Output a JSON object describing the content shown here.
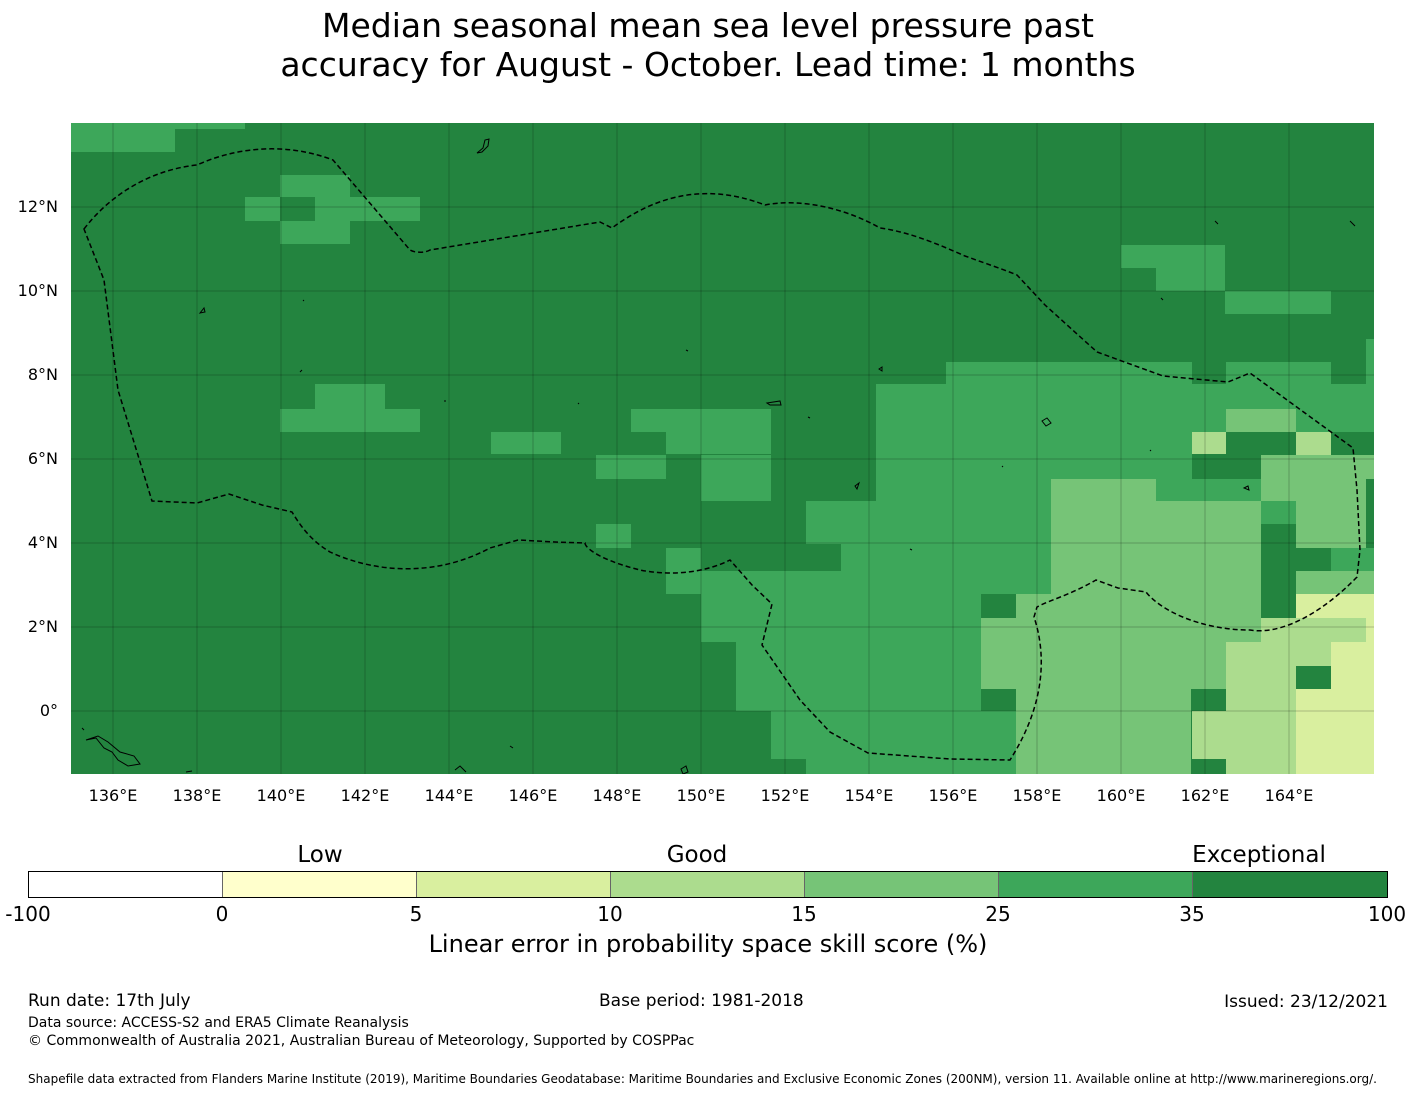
{
  "title": {
    "line1": "Median seasonal mean sea level pressure past",
    "line2": "accuracy for August - October. Lead time: 1 months"
  },
  "map": {
    "lon_range": [
      135,
      166
    ],
    "lat_range": [
      -1.5,
      14
    ],
    "lon_ticks": [
      "136°E",
      "138°E",
      "140°E",
      "142°E",
      "144°E",
      "146°E",
      "148°E",
      "150°E",
      "152°E",
      "154°E",
      "156°E",
      "158°E",
      "160°E",
      "162°E",
      "164°E"
    ],
    "lat_ticks": [
      "12°N",
      "10°N",
      "8°N",
      "6°N",
      "4°N",
      "2°N",
      "0°"
    ],
    "grid_lines": true,
    "boundary_style": "dashed",
    "colors": {
      "exceptional": "#23843f",
      "c25_35": "#3da75a",
      "c15_25": "#76c477",
      "c10_15": "#acdc8e",
      "c5_10": "#d9ef9f",
      "c0_5": "#ffffcc",
      "below0": "#ffffff"
    }
  },
  "legend": {
    "categories": [
      "Low",
      "Good",
      "Exceptional"
    ],
    "ticks": [
      "-100",
      "0",
      "5",
      "10",
      "15",
      "25",
      "35",
      "100"
    ],
    "segment_colors": [
      "#ffffff",
      "#ffffcc",
      "#d9ef9f",
      "#acdc8e",
      "#76c477",
      "#3da75a",
      "#23843f"
    ],
    "label": "Linear error in probability space skill score (%)"
  },
  "footer": {
    "run_date": "Run date: 17th July",
    "base_period": "Base period: 1981-2018",
    "issued": "Issued: 23/12/2021",
    "data_source": "Data source: ACCESS-S2 and ERA5 Climate Reanalysis",
    "copyright": "© Commonwealth of Australia 2021, Australian Bureau of Meteorology, Supported by COSPPac",
    "shapefile": "Shapefile data extracted from Flanders Marine Institute (2019), Maritime Boundaries Geodatabase: Maritime Boundaries and Exclusive Economic Zones (200NM), version 11. Available online at http://www.marineregions.org/."
  }
}
